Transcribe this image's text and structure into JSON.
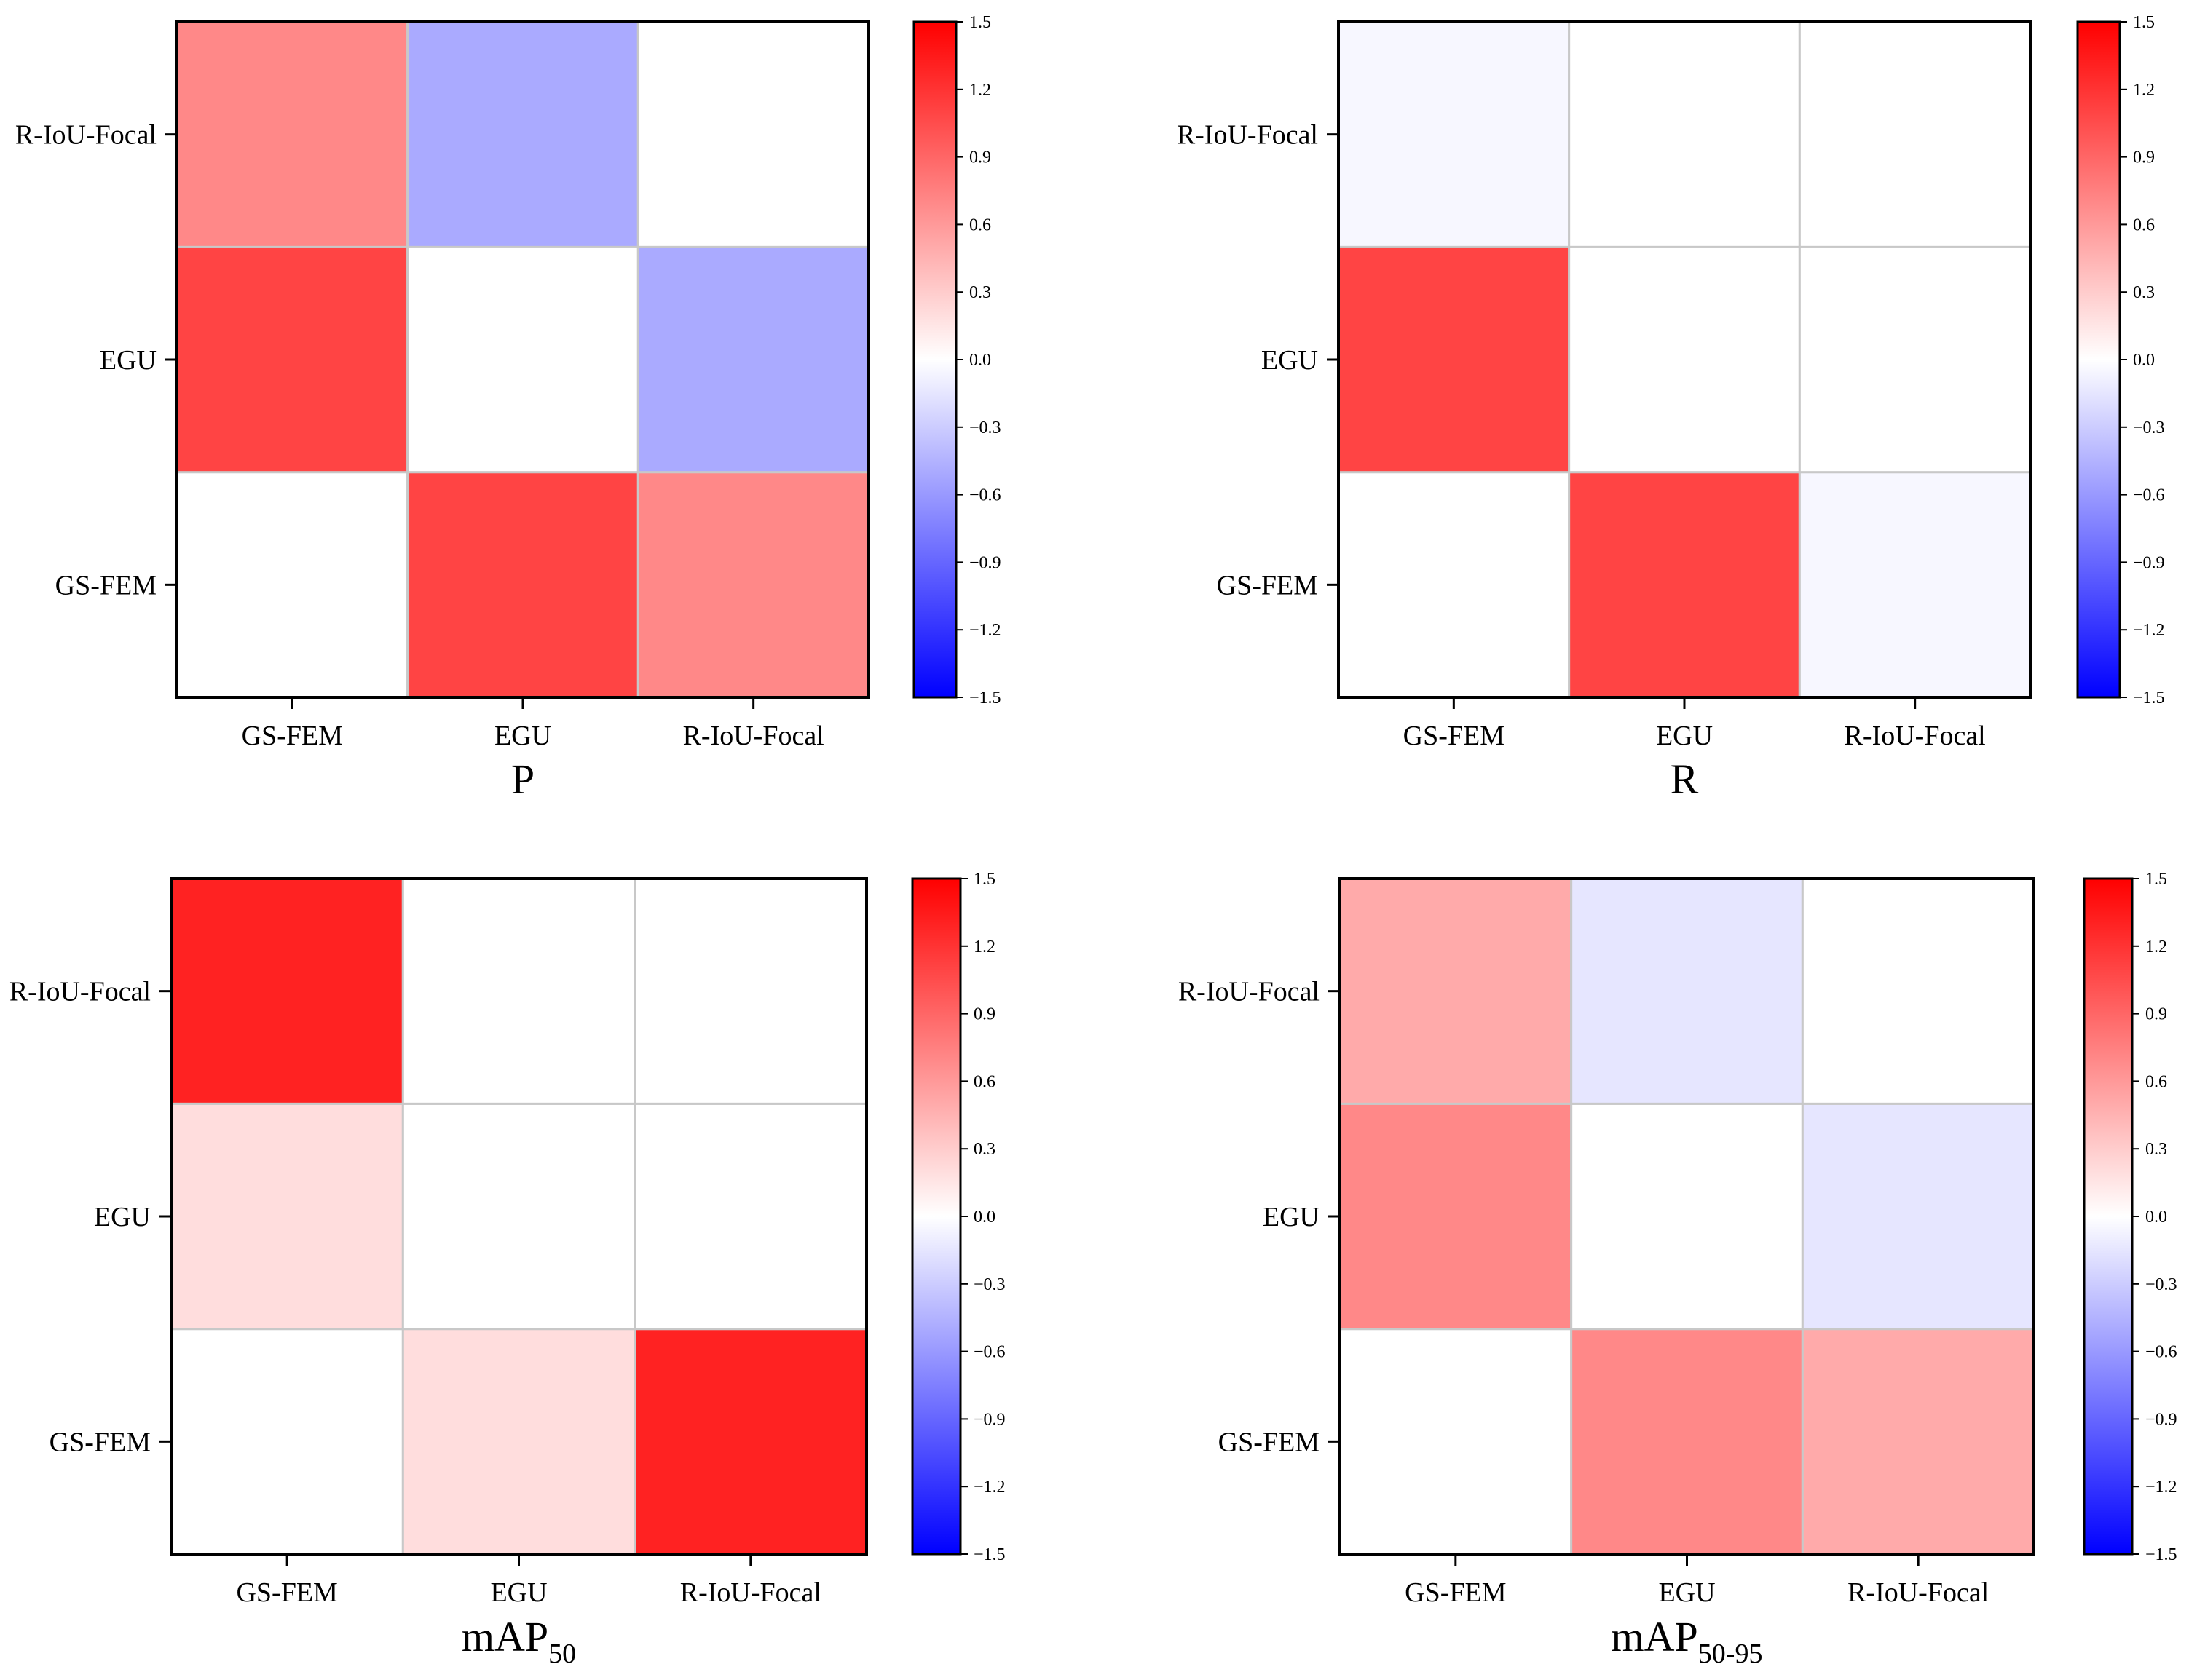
{
  "chart_data": [
    {
      "type": "heatmap",
      "title": "P",
      "title_sub": "",
      "x_categories": [
        "GS-FEM",
        "EGU",
        "R-IoU-Focal"
      ],
      "y_categories": [
        "GS-FEM",
        "EGU",
        "R-IoU-Focal"
      ],
      "values": [
        [
          0.0,
          1.1,
          0.7
        ],
        [
          1.1,
          0.0,
          -0.5
        ],
        [
          0.7,
          -0.5,
          0.0
        ]
      ],
      "colorbar": {
        "min": -1.5,
        "max": 1.5,
        "ticks": [
          "1.5",
          "1.2",
          "0.9",
          "0.6",
          "0.3",
          "0.0",
          "−0.3",
          "−0.6",
          "−0.9",
          "−1.2",
          "−1.5"
        ]
      }
    },
    {
      "type": "heatmap",
      "title": "R",
      "title_sub": "",
      "x_categories": [
        "GS-FEM",
        "EGU",
        "R-IoU-Focal"
      ],
      "y_categories": [
        "GS-FEM",
        "EGU",
        "R-IoU-Focal"
      ],
      "values": [
        [
          0.0,
          1.1,
          -0.05
        ],
        [
          1.1,
          0.0,
          0.0
        ],
        [
          -0.05,
          0.0,
          0.0
        ]
      ],
      "colorbar": {
        "min": -1.5,
        "max": 1.5,
        "ticks": [
          "1.5",
          "1.2",
          "0.9",
          "0.6",
          "0.3",
          "0.0",
          "−0.3",
          "−0.6",
          "−0.9",
          "−1.2",
          "−1.5"
        ]
      }
    },
    {
      "type": "heatmap",
      "title": "mAP",
      "title_sub": "50",
      "x_categories": [
        "GS-FEM",
        "EGU",
        "R-IoU-Focal"
      ],
      "y_categories": [
        "GS-FEM",
        "EGU",
        "R-IoU-Focal"
      ],
      "values": [
        [
          0.0,
          0.2,
          1.3
        ],
        [
          0.2,
          0.0,
          0.0
        ],
        [
          1.3,
          0.0,
          0.0
        ]
      ],
      "colorbar": {
        "min": -1.5,
        "max": 1.5,
        "ticks": [
          "1.5",
          "1.2",
          "0.9",
          "0.6",
          "0.3",
          "0.0",
          "−0.3",
          "−0.6",
          "−0.9",
          "−1.2",
          "−1.5"
        ]
      }
    },
    {
      "type": "heatmap",
      "title": "mAP",
      "title_sub": "50-95",
      "x_categories": [
        "GS-FEM",
        "EGU",
        "R-IoU-Focal"
      ],
      "y_categories": [
        "GS-FEM",
        "EGU",
        "R-IoU-Focal"
      ],
      "values": [
        [
          0.0,
          0.7,
          0.5
        ],
        [
          0.7,
          0.0,
          -0.15
        ],
        [
          0.5,
          -0.15,
          0.0
        ]
      ],
      "colorbar": {
        "min": -1.5,
        "max": 1.5,
        "ticks": [
          "1.5",
          "1.2",
          "0.9",
          "0.6",
          "0.3",
          "0.0",
          "−0.3",
          "−0.6",
          "−0.9",
          "−1.2",
          "−1.5"
        ]
      }
    }
  ]
}
